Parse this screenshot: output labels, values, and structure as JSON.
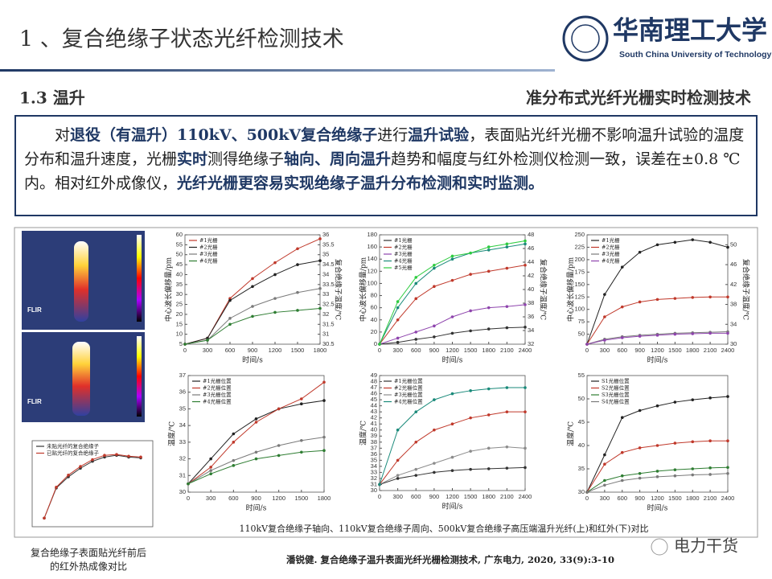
{
  "header": {
    "title": "1 、复合绝缘子状态光纤检测技术",
    "logo_cn": "华南理工大学",
    "logo_en": "South China University of Technology"
  },
  "section": {
    "number_title": "1.3 温升",
    "topic": "准分布式光纤光栅实时检测技术"
  },
  "paragraph": {
    "segments": [
      {
        "text": "对",
        "bold": false
      },
      {
        "text": "退役（有温升）110kV、500kV复合绝缘子",
        "bold": true
      },
      {
        "text": "进行",
        "bold": false
      },
      {
        "text": "温升试验",
        "bold": true
      },
      {
        "text": "，表面贴光纤光栅不影响温升试验的温度分布和温升速度，光栅",
        "bold": false
      },
      {
        "text": "实时",
        "bold": true
      },
      {
        "text": "测得绝缘子",
        "bold": false
      },
      {
        "text": "轴向、周向温升",
        "bold": true
      },
      {
        "text": "趋势和幅度与红外检测仪检测一致，误差在±0.8 ℃内。相对红外成像仪，",
        "bold": false
      },
      {
        "text": "光纤光栅更容易实现绝缘子温升分布检测和实时监测。",
        "bold": true
      }
    ]
  },
  "ir_images": {
    "labels": [
      "FLIR",
      "FLIR"
    ]
  },
  "chart_data": [
    {
      "type": "line",
      "xlabel": "时间/s",
      "ylabel": "中心波长偏移量/pm",
      "y2label": "复合绝缘子温度/℃",
      "x": [
        0,
        300,
        600,
        900,
        1200,
        1500,
        1800
      ],
      "xlim": [
        0,
        1800
      ],
      "xticks": [
        0,
        300,
        600,
        900,
        1200,
        1500,
        1800
      ],
      "ylim": [
        5,
        60
      ],
      "yticks": [
        5,
        10,
        15,
        20,
        25,
        30,
        35,
        40,
        45,
        50,
        55,
        60
      ],
      "y2lim": [
        30.5,
        36
      ],
      "y2ticks": [
        30.5,
        31,
        31.5,
        32,
        32.5,
        33,
        33.5,
        34,
        34.5,
        35,
        35.5,
        36
      ],
      "series": [
        {
          "name": "#1光栅",
          "color": "#c0392b",
          "values": [
            5,
            8,
            28,
            38,
            46,
            53,
            58
          ]
        },
        {
          "name": "#2光栅",
          "color": "#222222",
          "values": [
            5,
            8,
            27,
            34,
            40,
            45,
            47
          ]
        },
        {
          "name": "#3光栅",
          "color": "#7a7a7a",
          "values": [
            5,
            7,
            18,
            24,
            28,
            31,
            33
          ]
        },
        {
          "name": "#4光栅",
          "color": "#2e7d32",
          "values": [
            5,
            7,
            15,
            19,
            21,
            22,
            23
          ]
        }
      ]
    },
    {
      "type": "line",
      "xlabel": "时间/s",
      "ylabel": "中心波长偏移量/pm",
      "y2label": "复合绝缘子温度/℃",
      "x": [
        0,
        300,
        600,
        900,
        1200,
        1500,
        1800,
        2100,
        2400
      ],
      "xlim": [
        0,
        2400
      ],
      "xticks": [
        0,
        300,
        600,
        900,
        1200,
        1500,
        1800,
        2100,
        2400
      ],
      "ylim": [
        0,
        180
      ],
      "yticks": [
        0,
        20,
        40,
        60,
        80,
        100,
        120,
        140,
        160,
        180
      ],
      "y2lim": [
        32,
        48
      ],
      "y2ticks": [
        32,
        34,
        36,
        38,
        40,
        42,
        44,
        46,
        48
      ],
      "series": [
        {
          "name": "#1光栅",
          "color": "#333333",
          "values": [
            0,
            3,
            8,
            12,
            18,
            22,
            25,
            27,
            28
          ]
        },
        {
          "name": "#2光栅",
          "color": "#c0392b",
          "values": [
            0,
            40,
            75,
            95,
            105,
            115,
            120,
            125,
            130
          ]
        },
        {
          "name": "#3光栅",
          "color": "#8e44ad",
          "values": [
            0,
            10,
            20,
            30,
            45,
            55,
            60,
            62,
            65
          ]
        },
        {
          "name": "#4光栅",
          "color": "#1a8a7a",
          "values": [
            0,
            60,
            100,
            125,
            140,
            150,
            155,
            160,
            165
          ]
        },
        {
          "name": "#5光栅",
          "color": "#2ecc40",
          "values": [
            0,
            70,
            110,
            130,
            145,
            150,
            160,
            165,
            170
          ]
        }
      ]
    },
    {
      "type": "line",
      "xlabel": "时间/s",
      "ylabel": "中心波长偏移量/pm",
      "y2label": "复合绝缘子温度/℃",
      "x": [
        0,
        300,
        600,
        900,
        1200,
        1500,
        1800,
        2100,
        2400
      ],
      "xlim": [
        0,
        2400
      ],
      "xticks": [
        0,
        300,
        600,
        900,
        1200,
        1500,
        1800,
        2100,
        2400
      ],
      "ylim": [
        30,
        250
      ],
      "yticks": [
        50,
        75,
        100,
        125,
        150,
        175,
        200,
        225,
        250
      ],
      "y2lim": [
        30,
        52
      ],
      "y2ticks": [
        30,
        34,
        38,
        42,
        46,
        50
      ],
      "series": [
        {
          "name": "#1光栅",
          "color": "#222222",
          "values": [
            30,
            130,
            185,
            215,
            230,
            235,
            240,
            235,
            225
          ]
        },
        {
          "name": "#2光栅",
          "color": "#c0392b",
          "values": [
            30,
            85,
            105,
            115,
            120,
            122,
            124,
            125,
            125
          ]
        },
        {
          "name": "#3光栅",
          "color": "#7a7a7a",
          "values": [
            30,
            40,
            45,
            48,
            50,
            52,
            53,
            54,
            55
          ]
        },
        {
          "name": "#4光栅",
          "color": "#8e44ad",
          "values": [
            30,
            38,
            43,
            46,
            48,
            50,
            51,
            52,
            52
          ]
        }
      ]
    },
    {
      "type": "line",
      "xlabel": "时间/s",
      "ylabel": "温度/℃",
      "x": [
        0,
        300,
        600,
        900,
        1200,
        1500,
        1800
      ],
      "xlim": [
        0,
        1800
      ],
      "xticks": [
        0,
        300,
        600,
        900,
        1200,
        1500,
        1800
      ],
      "ylim": [
        30,
        37
      ],
      "yticks": [
        30,
        31,
        32,
        33,
        34,
        35,
        36,
        37
      ],
      "series": [
        {
          "name": "#1光栅位置",
          "color": "#222222",
          "values": [
            30.5,
            32.0,
            33.5,
            34.4,
            35.0,
            35.3,
            35.5
          ]
        },
        {
          "name": "#2光栅位置",
          "color": "#c0392b",
          "values": [
            30.5,
            31.5,
            33.0,
            34.2,
            35.0,
            35.6,
            36.6
          ]
        },
        {
          "name": "#3光栅位置",
          "color": "#7a7a7a",
          "values": [
            30.5,
            31.3,
            31.9,
            32.4,
            32.8,
            33.1,
            33.3
          ]
        },
        {
          "name": "#4光栅位置",
          "color": "#2e7d32",
          "values": [
            30.5,
            31.1,
            31.6,
            32.0,
            32.2,
            32.4,
            32.5
          ]
        }
      ]
    },
    {
      "type": "line",
      "xlabel": "时间/s",
      "ylabel": "温度/℃",
      "x": [
        0,
        300,
        600,
        900,
        1200,
        1500,
        1800,
        2100,
        2400
      ],
      "xlim": [
        0,
        2400
      ],
      "xticks": [
        0,
        300,
        600,
        900,
        1200,
        1500,
        1800,
        2100,
        2400
      ],
      "ylim": [
        30,
        49
      ],
      "yticks": [
        30,
        31,
        32,
        33,
        34,
        35,
        36,
        37,
        38,
        39,
        40,
        41,
        42,
        43,
        44,
        45,
        46,
        47,
        48,
        49
      ],
      "series": [
        {
          "name": "#1光栅位置",
          "color": "#333333",
          "values": [
            31,
            32,
            32.5,
            33,
            33.3,
            33.5,
            33.6,
            33.7,
            33.8
          ]
        },
        {
          "name": "#2光栅位置",
          "color": "#c0392b",
          "values": [
            31,
            35,
            38,
            40,
            41,
            42,
            42.5,
            43,
            43
          ]
        },
        {
          "name": "#3光栅位置",
          "color": "#8c8c8c",
          "values": [
            31,
            32.5,
            33.5,
            34.5,
            35.5,
            36.5,
            37,
            37.2,
            37
          ]
        },
        {
          "name": "#4光栅位置",
          "color": "#1a8a7a",
          "values": [
            31,
            40,
            43,
            45,
            46,
            46.5,
            46.8,
            47,
            47
          ]
        }
      ]
    },
    {
      "type": "line",
      "xlabel": "时间/s",
      "ylabel": "温度/℃",
      "x": [
        0,
        300,
        600,
        900,
        1200,
        1500,
        1800,
        2100,
        2400
      ],
      "xlim": [
        0,
        2400
      ],
      "xticks": [
        0,
        300,
        600,
        900,
        1200,
        1500,
        1800,
        2100,
        2400
      ],
      "ylim": [
        30,
        55
      ],
      "yticks": [
        30,
        35,
        40,
        45,
        50,
        55
      ],
      "series": [
        {
          "name": "S1光栅位置",
          "color": "#222222",
          "values": [
            30,
            38,
            46,
            47.5,
            48.5,
            49.3,
            49.8,
            50.2,
            50.5
          ]
        },
        {
          "name": "S2光栅位置",
          "color": "#c0392b",
          "values": [
            30,
            36,
            38.5,
            39.5,
            40,
            40.5,
            40.8,
            41,
            41
          ]
        },
        {
          "name": "S3光栅位置",
          "color": "#2e7d32",
          "values": [
            30,
            32.5,
            33.5,
            34,
            34.5,
            34.8,
            35,
            35.2,
            35.3
          ]
        },
        {
          "name": "S4光栅位置",
          "color": "#7a7a7a",
          "values": [
            30,
            31.5,
            32.5,
            33,
            33.3,
            33.5,
            33.7,
            33.8,
            34
          ]
        }
      ]
    },
    {
      "type": "line",
      "x": [
        1,
        2,
        3,
        4,
        5,
        6,
        7,
        8,
        9
      ],
      "xlim": [
        0,
        10
      ],
      "ylim": [
        0,
        10
      ],
      "series": [
        {
          "name": "未贴光纤的复合绝缘子",
          "color": "#333333",
          "values": [
            1,
            4.5,
            5.8,
            6.8,
            7.6,
            8.1,
            8.3,
            8.1,
            8.0
          ]
        },
        {
          "name": "已贴光纤的复合绝缘子",
          "color": "#c0392b",
          "values": [
            1,
            4.6,
            6.0,
            7.0,
            7.8,
            8.3,
            8.4,
            8.2,
            8.1
          ]
        }
      ]
    }
  ],
  "captions": {
    "ir": [
      "复合绝缘子表面贴光纤前后",
      "的红外热成像对比"
    ],
    "charts": "110kV复合绝缘子轴向、110kV复合绝缘子周向、500kV复合绝缘子高压端温升光纤(上)和红外(下)对比",
    "reference": "潘锐健. 复合绝缘子温升表面光纤光栅检测技术, 广东电力, 2020, 33(9):3-10",
    "watermark": "电力干货"
  }
}
